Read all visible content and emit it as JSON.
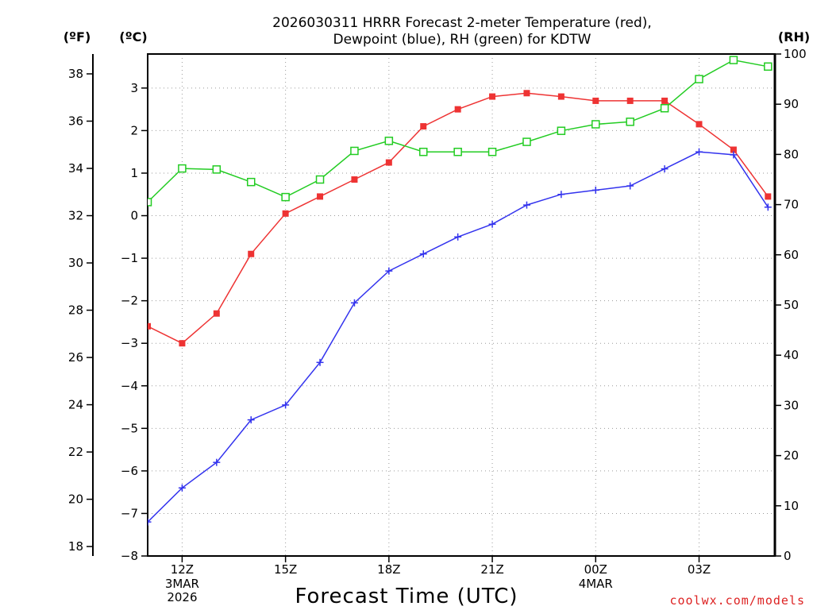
{
  "chart_data": {
    "type": "line",
    "title_lines": [
      "2026030311 HRRR Forecast 2-meter Temperature (red),",
      "Dewpoint (blue), RH (green) for KDTW"
    ],
    "xlabel": "Forecast Time (UTC)",
    "footer": "coolwx.com/models",
    "units": {
      "fahrenheit": "(ºF)",
      "celsius": "(ºC)",
      "rh": "(RH)"
    },
    "x": [
      11,
      12,
      13,
      14,
      15,
      16,
      17,
      18,
      19,
      20,
      21,
      22,
      23,
      24,
      25,
      26,
      27,
      28,
      29
    ],
    "xlim": [
      11,
      29.2
    ],
    "x_ticks": [
      {
        "x": 12,
        "label": "12Z",
        "sub": [
          "3MAR",
          "2026"
        ]
      },
      {
        "x": 15,
        "label": "15Z",
        "sub": []
      },
      {
        "x": 18,
        "label": "18Z",
        "sub": []
      },
      {
        "x": 21,
        "label": "21Z",
        "sub": []
      },
      {
        "x": 24,
        "label": "00Z",
        "sub": [
          "4MAR"
        ]
      },
      {
        "x": 27,
        "label": "03Z",
        "sub": []
      }
    ],
    "y_celsius": {
      "lim": [
        -8,
        3.8
      ],
      "ticks": [
        -8,
        -7,
        -6,
        -5,
        -4,
        -3,
        -2,
        -1,
        0,
        1,
        2,
        3
      ],
      "tick_labels": [
        "−8",
        "−7",
        "−6",
        "−5",
        "−4",
        "−3",
        "−2",
        "−1",
        "0",
        "1",
        "2",
        "3"
      ]
    },
    "y_fahrenheit": {
      "ticks": [
        18,
        20,
        22,
        24,
        26,
        28,
        30,
        32,
        34,
        36,
        38
      ],
      "tick_labels": [
        "18",
        "20",
        "22",
        "24",
        "26",
        "28",
        "30",
        "32",
        "34",
        "36",
        "38"
      ]
    },
    "y_rh": {
      "lim": [
        0,
        100
      ],
      "ticks": [
        0,
        10,
        20,
        30,
        40,
        50,
        60,
        70,
        80,
        90,
        100
      ],
      "tick_labels": [
        "0",
        "10",
        "20",
        "30",
        "40",
        "50",
        "60",
        "70",
        "80",
        "90",
        "100"
      ]
    },
    "grid": true,
    "series": [
      {
        "name": "Temperature",
        "axis": "celsius",
        "color": "#ee3333",
        "marker": "filled-square",
        "values": [
          -2.6,
          -3.0,
          -2.3,
          -0.9,
          0.05,
          0.45,
          0.85,
          1.25,
          2.1,
          2.5,
          2.8,
          2.88,
          2.8,
          2.7,
          2.7,
          2.7,
          2.15,
          1.55,
          0.45
        ]
      },
      {
        "name": "Dewpoint",
        "axis": "celsius",
        "color": "#3333ee",
        "marker": "plus",
        "values": [
          -7.2,
          -6.4,
          -5.8,
          -4.8,
          -4.45,
          -3.45,
          -2.05,
          -1.3,
          -0.9,
          -0.5,
          -0.2,
          0.25,
          0.5,
          0.6,
          0.7,
          1.1,
          1.5,
          1.43,
          0.2
        ]
      },
      {
        "name": "RH",
        "axis": "rh",
        "color": "#22cc22",
        "marker": "open-square",
        "values": [
          70.5,
          77.2,
          77.0,
          74.5,
          71.5,
          75.0,
          80.7,
          82.7,
          80.5,
          80.5,
          80.5,
          82.5,
          84.7,
          86.0,
          86.5,
          89.2,
          95.0,
          98.8,
          97.5
        ]
      }
    ]
  }
}
